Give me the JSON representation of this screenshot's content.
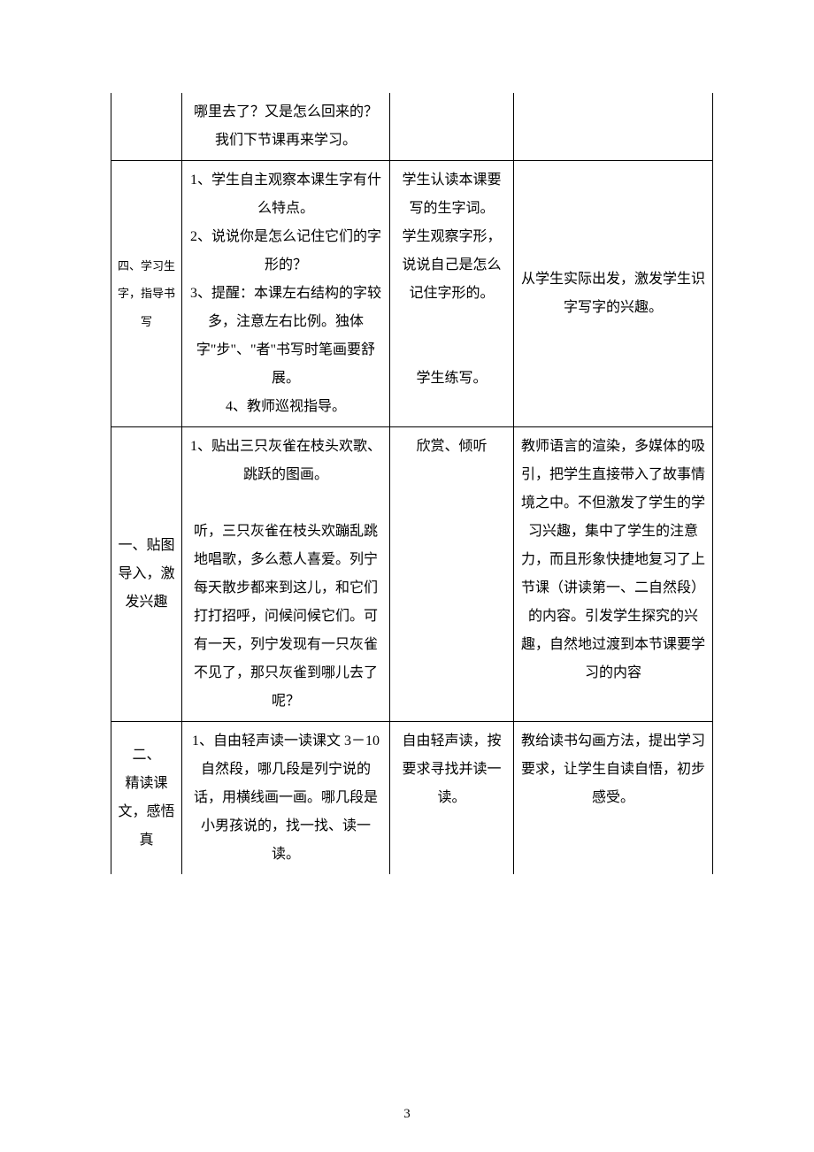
{
  "pageNumber": "3",
  "colors": {
    "text": "#000000",
    "border": "#000000",
    "background": "#ffffff"
  },
  "typography": {
    "bodyFontSizePt": 12,
    "sectionSmallFontSizePt": 10,
    "lineHeight": 2.0,
    "fontFamily": "SimSun"
  },
  "columns": {
    "widthsPx": [
      80,
      235,
      140,
      225
    ]
  },
  "rows": {
    "r0": {
      "teacher": "哪里去了？又是怎么回来的？我们下节课再来学习。",
      "student": "",
      "intent": ""
    },
    "r1": {
      "section": "四、学习生字，指导书写",
      "teacher": "1、学生自主观察本课生字有什么特点。\n2、说说你是怎么记住它们的字形的？\n3、提醒：本课左右结构的字较多，注意左右比例。独体字\"步\"、\"者\"书写时笔画要舒展。\n4、教师巡视指导。",
      "student": "学生认读本课要写的生字词。\n学生观察字形，说说自己是怎么记住字形的。\n\n\n学生练写。",
      "intent": "从学生实际出发，激发学生识字写字的兴趣。"
    },
    "r2": {
      "section": "一、贴图导入，激发兴趣",
      "teacher": "1、贴出三只灰雀在枝头欢歌、跳跃的图画。\n\n听，三只灰雀在枝头欢蹦乱跳地唱歌，多么惹人喜爱。列宁每天散步都来到这儿，和它们打打招呼，问候问候它们。可有一天，列宁发现有一只灰雀不见了，那只灰雀到哪儿去了呢？",
      "student": "欣赏、倾听",
      "intent": "教师语言的渲染，多媒体的吸引，把学生直接带入了故事情境之中。不但激发了学生的学习兴趣，集中了学生的注意力，而且形象快捷地复习了上节课（讲读第一、二自然段）的内容。引发学生探究的兴趣，自然地过渡到本节课要学习的内容"
    },
    "r3": {
      "section": "二、\n精读课文，感悟真",
      "teacher": "1、自由轻声读一读课文 3－10自然段，哪几段是列宁说的话，用横线画一画。哪几段是小男孩说的，找一找、读一读。",
      "student": "自由轻声读，按要求寻找并读一读。",
      "intent": "教给读书勾画方法，提出学习要求，让学生自读自悟，初步感受。"
    }
  }
}
